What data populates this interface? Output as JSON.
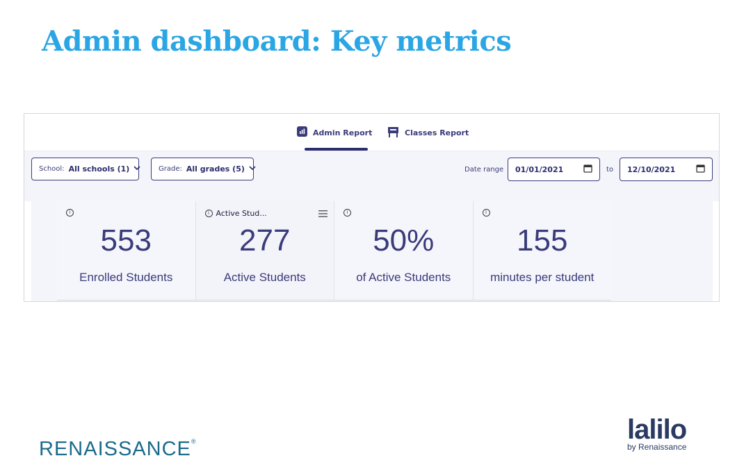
{
  "slide": {
    "title": "Admin dashboard: Key metrics"
  },
  "tabs": [
    {
      "label": "Admin Report",
      "icon": "bar-chart-icon",
      "selected": true
    },
    {
      "label": "Classes Report",
      "icon": "desk-icon",
      "selected": false
    }
  ],
  "filters": {
    "school": {
      "label": "School:",
      "value": "All schools (1)"
    },
    "grade": {
      "label": "Grade:",
      "value": "All grades (5)"
    },
    "date_range": {
      "label": "Date range",
      "from": "01/01/2021",
      "to_label": "to",
      "to": "12/10/2021"
    }
  },
  "metrics": [
    {
      "header": "",
      "value": "553",
      "caption": "Enrolled Students",
      "has_menu": false
    },
    {
      "header": "Active Stud...",
      "value": "277",
      "caption": "Active Students",
      "has_menu": true
    },
    {
      "header": "",
      "value": "50%",
      "caption": "of Active Students",
      "has_menu": false
    },
    {
      "header": "",
      "value": "155",
      "caption": "minutes per student",
      "has_menu": false
    }
  ],
  "brand": {
    "renaissance": "RENAISSANCE",
    "renaissance_mark": "®",
    "lalilo": "lalilo",
    "lalilo_sub": "by Renaissance"
  },
  "colors": {
    "title": "#2ba6e4",
    "accent": "#2c2d6e",
    "metric_text": "#3a3b7a"
  }
}
